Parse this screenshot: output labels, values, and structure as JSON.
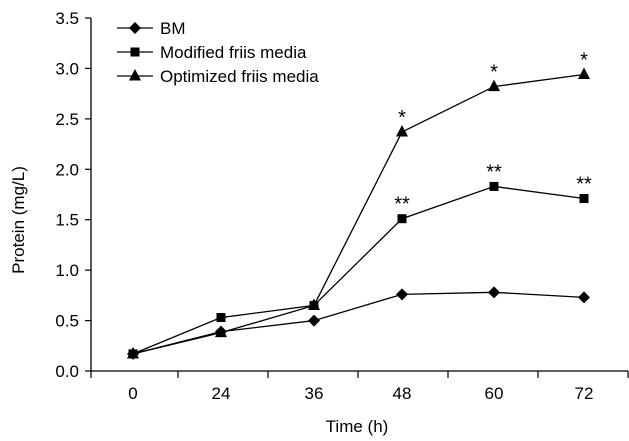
{
  "chart_data": {
    "type": "line",
    "x": [
      "0",
      "24",
      "36",
      "48",
      "60",
      "72"
    ],
    "xlabel": "Time (h)",
    "ylabel": "Protein (mg/L)",
    "ylim": [
      0.0,
      3.5
    ],
    "yticks": [
      "0.0",
      "0.5",
      "1.0",
      "1.5",
      "2.0",
      "2.5",
      "3.0",
      "3.5"
    ],
    "grid": false,
    "legend_position": "top-left",
    "series": [
      {
        "name": "BM",
        "marker": "diamond",
        "values": [
          0.17,
          0.39,
          0.5,
          0.76,
          0.78,
          0.73
        ]
      },
      {
        "name": "Modified friis media",
        "marker": "square",
        "values": [
          0.17,
          0.53,
          0.65,
          1.51,
          1.83,
          1.71
        ]
      },
      {
        "name": "Optimized friis media",
        "marker": "triangle",
        "values": [
          0.17,
          0.38,
          0.65,
          2.37,
          2.82,
          2.94
        ]
      }
    ],
    "annotations": [
      {
        "series": "Modified friis media",
        "x": "48",
        "text": "**"
      },
      {
        "series": "Modified friis media",
        "x": "60",
        "text": "**"
      },
      {
        "series": "Modified friis media",
        "x": "72",
        "text": "**"
      },
      {
        "series": "Optimized friis media",
        "x": "48",
        "text": "*"
      },
      {
        "series": "Optimized friis media",
        "x": "60",
        "text": "*"
      },
      {
        "series": "Optimized friis media",
        "x": "72",
        "text": "*"
      }
    ]
  }
}
